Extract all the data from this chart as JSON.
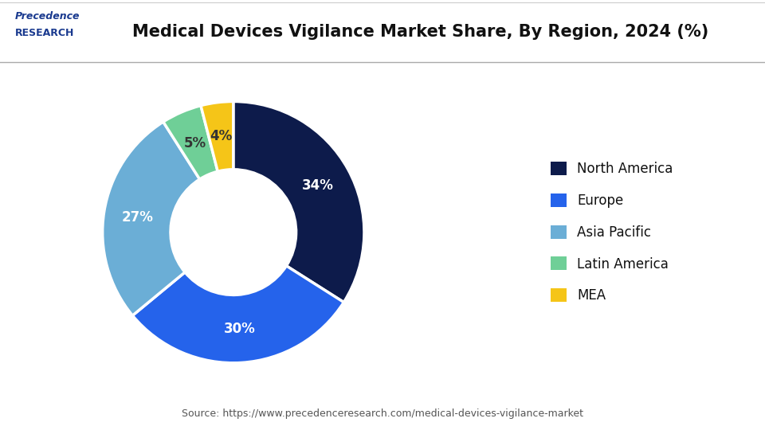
{
  "title": "Medical Devices Vigilance Market Share, By Region, 2024 (%)",
  "labels": [
    "North America",
    "Europe",
    "Asia Pacific",
    "Latin America",
    "MEA"
  ],
  "values": [
    34,
    30,
    27,
    5,
    4
  ],
  "colors": [
    "#0d1b4b",
    "#2563eb",
    "#6baed6",
    "#6fcf97",
    "#f5c518"
  ],
  "pct_labels": [
    "34%",
    "30%",
    "27%",
    "5%",
    "4%"
  ],
  "pct_text_colors": [
    "white",
    "white",
    "white",
    "#333333",
    "#333333"
  ],
  "source_text": "Source: https://www.precedenceresearch.com/medical-devices-vigilance-market",
  "background_color": "#ffffff",
  "title_fontsize": 15,
  "legend_fontsize": 12,
  "logo_line1": "Precedence",
  "logo_line2": "RESEARCH"
}
